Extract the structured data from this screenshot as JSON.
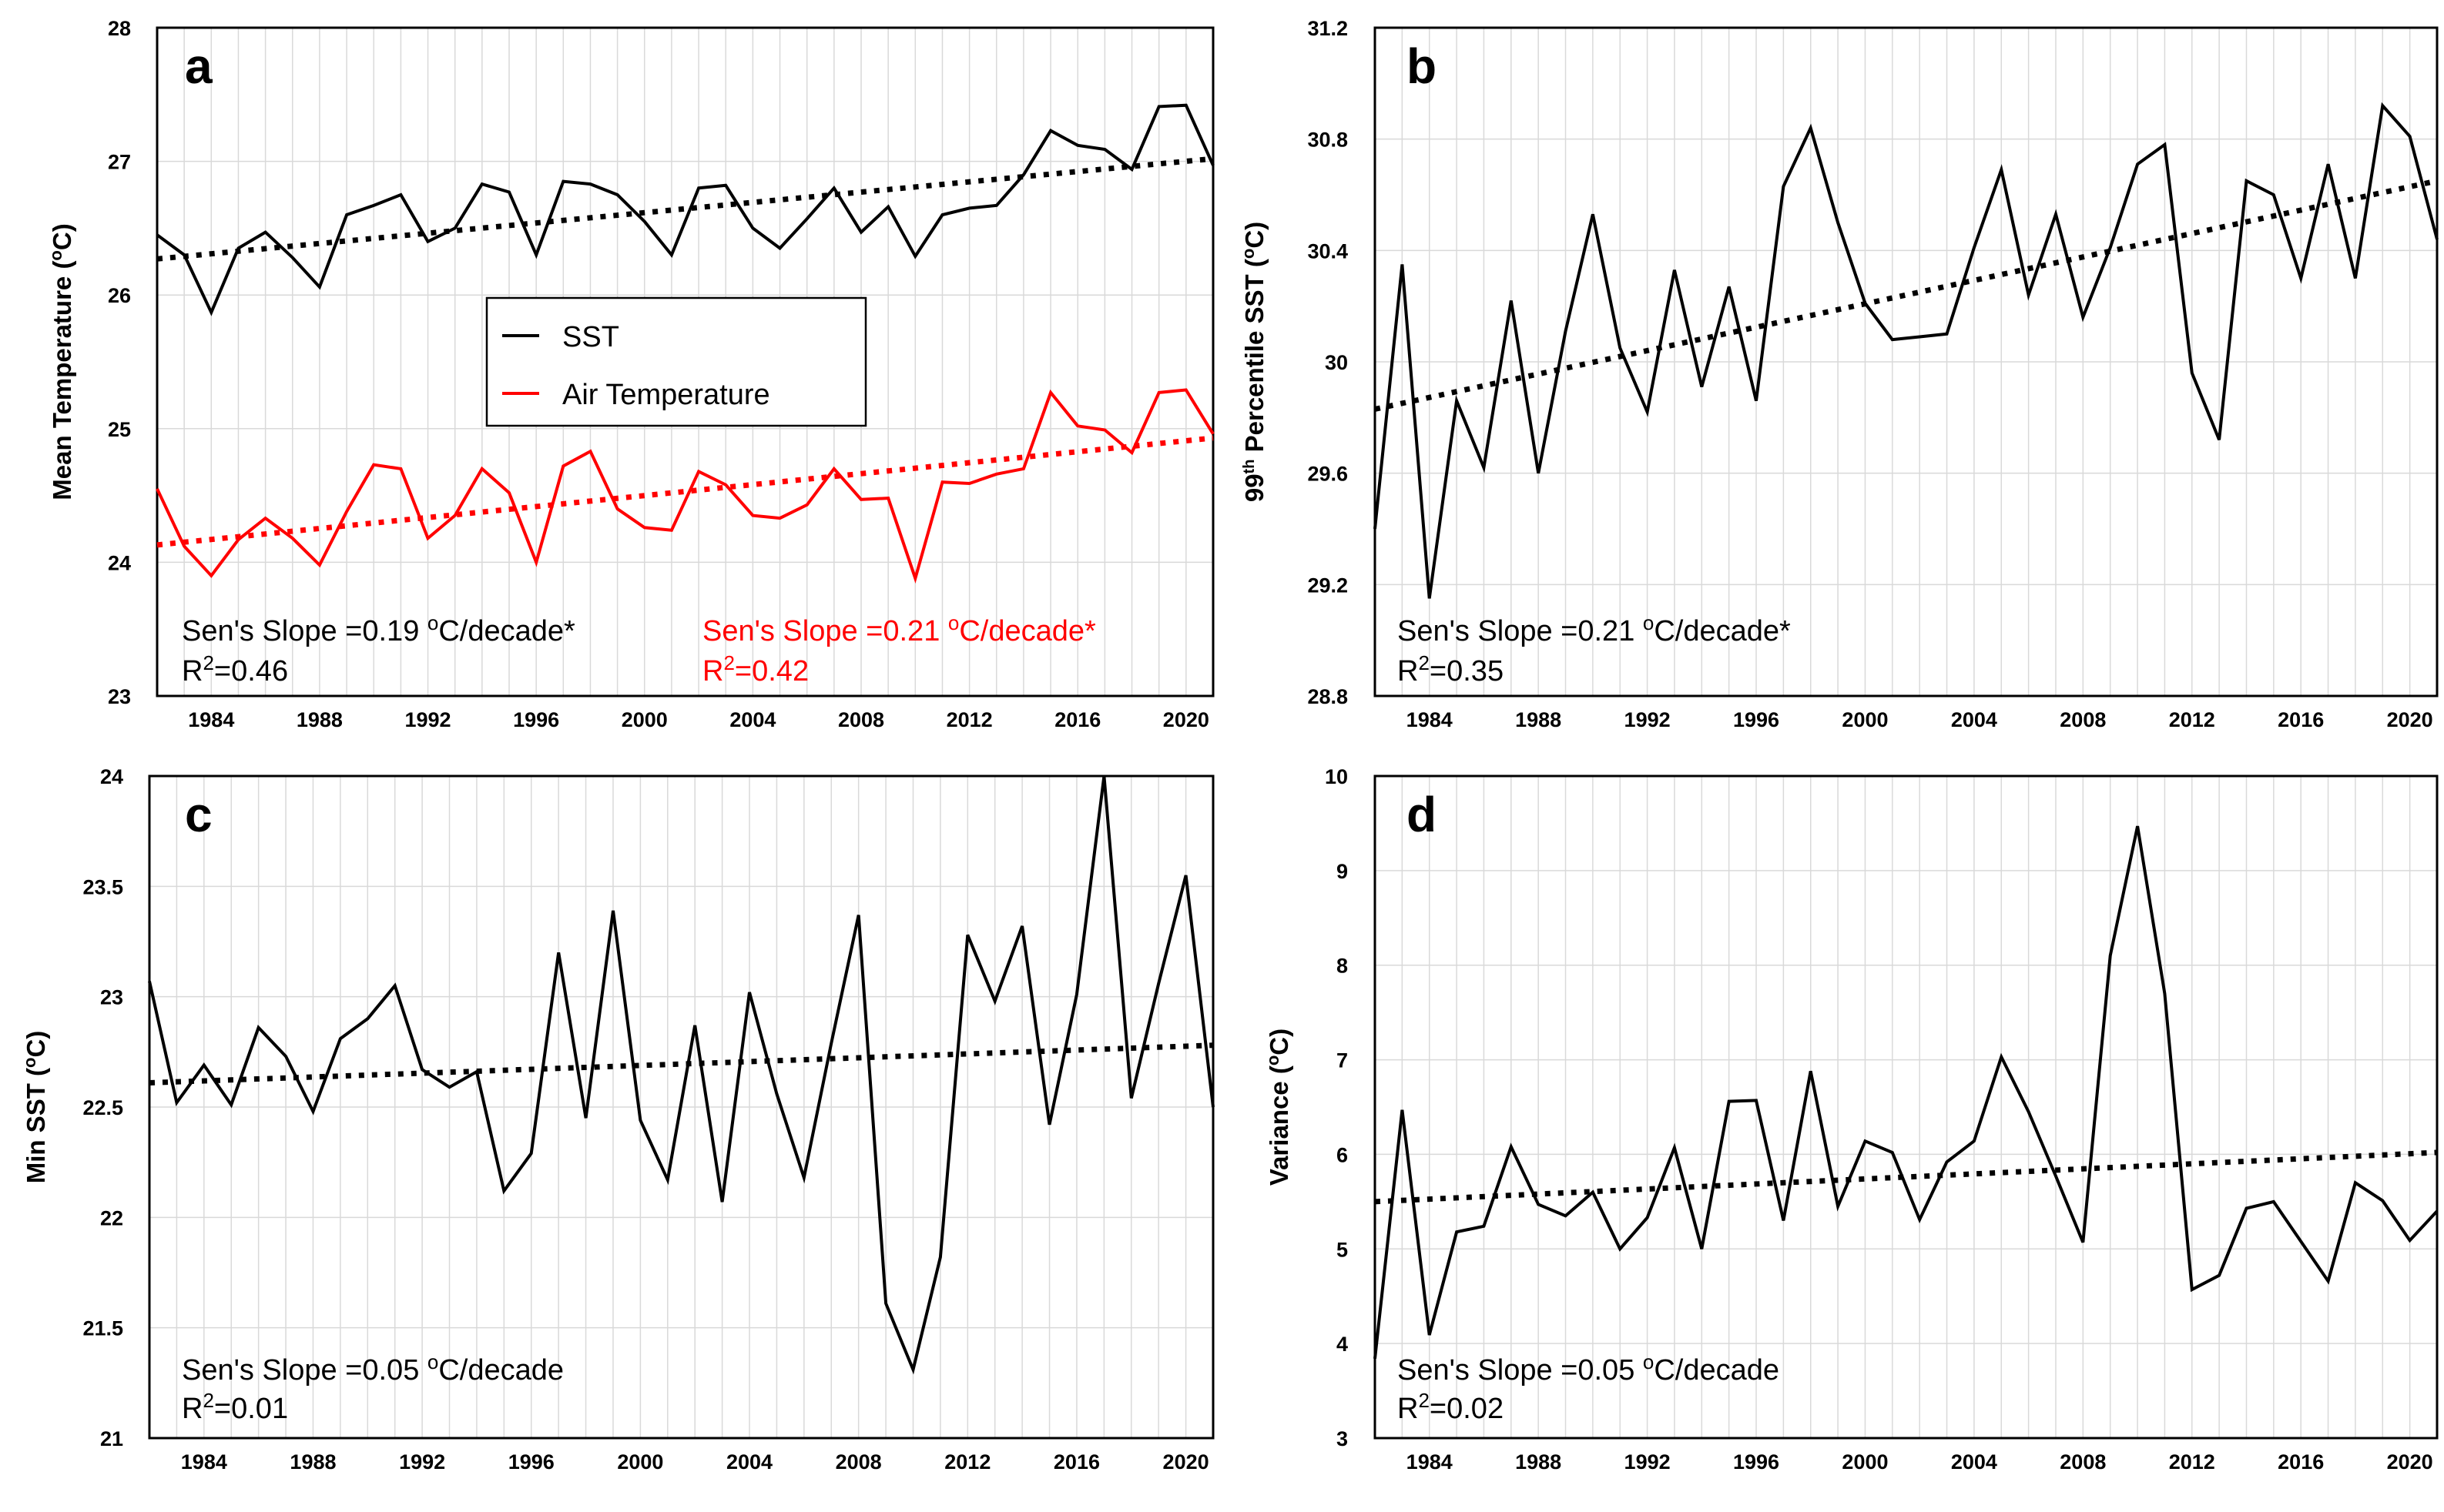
{
  "chart_data": [
    {
      "type": "line",
      "panel": "a",
      "ylabel": "Mean Temperature (oC)",
      "ylabel_main": "Mean Temperature (",
      "ylabel_sup": "o",
      "ylabel_end": "C)",
      "ylim": [
        23,
        28
      ],
      "yticks": [
        23,
        24,
        25,
        26,
        27,
        28
      ],
      "xlim": [
        1982,
        2021
      ],
      "xticks": [
        1984,
        1988,
        1992,
        1996,
        2000,
        2004,
        2008,
        2012,
        2016,
        2020
      ],
      "grid": true,
      "legend": {
        "placement": "center-left",
        "entries": [
          "SST",
          "Air Temperature"
        ]
      },
      "series": [
        {
          "name": "SST",
          "color": "#000000",
          "x": [
            1982,
            1983,
            1984,
            1985,
            1986,
            1987,
            1988,
            1989,
            1990,
            1991,
            1992,
            1993,
            1994,
            1995,
            1996,
            1997,
            1998,
            1999,
            2000,
            2001,
            2002,
            2003,
            2004,
            2005,
            2006,
            2007,
            2008,
            2009,
            2010,
            2011,
            2012,
            2013,
            2014,
            2015,
            2016,
            2017,
            2018,
            2019,
            2020,
            2021
          ],
          "values": [
            26.45,
            26.3,
            25.87,
            26.35,
            26.47,
            26.28,
            26.06,
            26.6,
            26.67,
            26.75,
            26.4,
            26.5,
            26.83,
            26.77,
            26.3,
            26.85,
            26.83,
            26.75,
            26.55,
            26.3,
            26.8,
            26.82,
            26.5,
            26.35,
            26.57,
            26.8,
            26.47,
            26.66,
            26.29,
            26.6,
            26.65,
            26.67,
            26.9,
            27.23,
            27.12,
            27.09,
            26.94,
            27.41,
            27.42,
            26.97
          ]
        },
        {
          "name": "Air Temperature",
          "color": "#ff0000",
          "x": [
            1982,
            1983,
            1984,
            1985,
            1986,
            1987,
            1988,
            1989,
            1990,
            1991,
            1992,
            1993,
            1994,
            1995,
            1996,
            1997,
            1998,
            1999,
            2000,
            2001,
            2002,
            2003,
            2004,
            2005,
            2006,
            2007,
            2008,
            2009,
            2010,
            2011,
            2012,
            2013,
            2014,
            2015,
            2016,
            2017,
            2018,
            2019,
            2020,
            2021
          ],
          "values": [
            24.55,
            24.12,
            23.9,
            24.17,
            24.33,
            24.18,
            23.98,
            24.38,
            24.73,
            24.7,
            24.18,
            24.35,
            24.7,
            24.52,
            24,
            24.72,
            24.83,
            24.4,
            24.26,
            24.24,
            24.68,
            24.58,
            24.35,
            24.33,
            24.43,
            24.7,
            24.47,
            24.48,
            23.88,
            24.6,
            24.59,
            24.66,
            24.7,
            25.27,
            25.02,
            24.99,
            24.82,
            25.27,
            25.29,
            24.96
          ]
        }
      ],
      "trends": [
        {
          "name": "SST trend",
          "color": "#000000",
          "x": [
            1982,
            2021
          ],
          "values": [
            26.27,
            27.02
          ]
        },
        {
          "name": "Air Temperature trend",
          "color": "#ff0000",
          "x": [
            1982,
            2021
          ],
          "values": [
            24.13,
            24.93
          ]
        }
      ],
      "annotations": [
        {
          "text": "Sen's Slope =0.19 ",
          "sup": "o",
          "text_end": "C/decade*",
          "r2": "R2=0.46",
          "r2_main": "R",
          "r2_sup": "2",
          "r2_end": "=0.46",
          "color": "#000000"
        },
        {
          "text": "Sen's Slope =0.21 ",
          "sup": "o",
          "text_end": "C/decade*",
          "r2": "R2=0.42",
          "r2_main": "R",
          "r2_sup": "2",
          "r2_end": "=0.42",
          "color": "#ff0000"
        }
      ]
    },
    {
      "type": "line",
      "panel": "b",
      "ylabel": "99th Percentile SST (oC)",
      "ylabel_pre": "99",
      "ylabel_pre_sup": "th",
      "ylabel_main": " Percentile SST (",
      "ylabel_sup": "o",
      "ylabel_end": "C)",
      "ylim": [
        28.8,
        31.2
      ],
      "yticks": [
        28.8,
        29.2,
        29.6,
        30,
        30.4,
        30.8,
        31.2
      ],
      "ytick_labels": [
        "28.8",
        "29.2",
        "29.6",
        "30",
        "30.4",
        "30.8",
        "31.2"
      ],
      "xlim": [
        1982,
        2021
      ],
      "xticks": [
        1984,
        1988,
        1992,
        1996,
        2000,
        2004,
        2008,
        2012,
        2016,
        2020
      ],
      "grid": true,
      "series": [
        {
          "name": "99th Percentile SST",
          "color": "#000000",
          "x": [
            1982,
            1983,
            1984,
            1985,
            1986,
            1987,
            1988,
            1989,
            1990,
            1991,
            1992,
            1993,
            1994,
            1995,
            1996,
            1997,
            1998,
            1999,
            2000,
            2001,
            2002,
            2003,
            2004,
            2005,
            2006,
            2007,
            2008,
            2009,
            2010,
            2011,
            2012,
            2013,
            2014,
            2015,
            2016,
            2017,
            2018,
            2019,
            2020,
            2021
          ],
          "values": [
            29.4,
            30.35,
            29.15,
            29.86,
            29.62,
            30.22,
            29.6,
            30.11,
            30.53,
            30.05,
            29.82,
            30.33,
            29.91,
            30.27,
            29.86,
            30.63,
            30.84,
            30.5,
            30.21,
            30.08,
            30.09,
            30.1,
            30.41,
            30.69,
            30.24,
            30.53,
            30.16,
            30.41,
            30.71,
            30.78,
            29.96,
            29.72,
            30.65,
            30.6,
            30.3,
            30.71,
            30.3,
            30.92,
            30.81,
            30.44
          ]
        }
      ],
      "trends": [
        {
          "name": "trend",
          "color": "#000000",
          "x": [
            1982,
            2021
          ],
          "values": [
            29.83,
            30.65
          ]
        }
      ],
      "annotations": [
        {
          "text": "Sen's Slope =0.21 ",
          "sup": "o",
          "text_end": "C/decade*",
          "r2": "R2=0.35",
          "r2_main": "R",
          "r2_sup": "2",
          "r2_end": "=0.35",
          "color": "#000000"
        }
      ]
    },
    {
      "type": "line",
      "panel": "c",
      "ylabel": "Min SST (oC)",
      "ylabel_main": "Min SST (",
      "ylabel_sup": "o",
      "ylabel_end": "C)",
      "ylim": [
        21,
        24
      ],
      "yticks": [
        21,
        21.5,
        22,
        22.5,
        23,
        23.5,
        24
      ],
      "ytick_labels": [
        "21",
        "21.5",
        "22",
        "22.5",
        "23",
        "23.5",
        "24"
      ],
      "xlim": [
        1982,
        2021
      ],
      "xticks": [
        1984,
        1988,
        1992,
        1996,
        2000,
        2004,
        2008,
        2012,
        2016,
        2020
      ],
      "grid": true,
      "series": [
        {
          "name": "Min SST",
          "color": "#000000",
          "x": [
            1982,
            1983,
            1984,
            1985,
            1986,
            1987,
            1988,
            1989,
            1990,
            1991,
            1992,
            1993,
            1994,
            1995,
            1996,
            1997,
            1998,
            1999,
            2000,
            2001,
            2002,
            2003,
            2004,
            2005,
            2006,
            2007,
            2008,
            2009,
            2010,
            2011,
            2012,
            2013,
            2014,
            2015,
            2016,
            2017,
            2018,
            2019,
            2020,
            2021
          ],
          "values": [
            23.07,
            22.52,
            22.69,
            22.51,
            22.86,
            22.73,
            22.48,
            22.81,
            22.9,
            23.05,
            22.67,
            22.59,
            22.66,
            22.12,
            22.29,
            23.2,
            22.45,
            23.39,
            22.44,
            22.17,
            22.87,
            22.07,
            23.02,
            22.56,
            22.18,
            22.79,
            23.37,
            21.61,
            21.31,
            21.82,
            23.28,
            22.98,
            23.32,
            22.42,
            23.01,
            24,
            22.54,
            23.06,
            23.55,
            22.5
          ]
        }
      ],
      "trends": [
        {
          "name": "trend",
          "color": "#000000",
          "x": [
            1982,
            2021
          ],
          "values": [
            22.61,
            22.78
          ]
        }
      ],
      "annotations": [
        {
          "text": "Sen's Slope =0.05 ",
          "sup": "o",
          "text_end": "C/decade",
          "r2": "R2=0.01",
          "r2_main": "R",
          "r2_sup": "2",
          "r2_end": "=0.01",
          "color": "#000000"
        }
      ]
    },
    {
      "type": "line",
      "panel": "d",
      "ylabel": "Variance (oC)",
      "ylabel_main": "Variance (",
      "ylabel_sup": "o",
      "ylabel_end": "C)",
      "ylim": [
        3,
        10
      ],
      "yticks": [
        3,
        4,
        5,
        6,
        7,
        8,
        9,
        10
      ],
      "ytick_labels": [
        "3",
        "4",
        "5",
        "6",
        "7",
        "8",
        "9",
        "10"
      ],
      "xlim": [
        1982,
        2021
      ],
      "xticks": [
        1984,
        1988,
        1992,
        1996,
        2000,
        2004,
        2008,
        2012,
        2016,
        2020
      ],
      "grid": true,
      "series": [
        {
          "name": "Variance",
          "color": "#000000",
          "x": [
            1982,
            1983,
            1984,
            1985,
            1986,
            1987,
            1988,
            1989,
            1990,
            1991,
            1992,
            1993,
            1994,
            1995,
            1996,
            1997,
            1998,
            1999,
            2000,
            2001,
            2002,
            2003,
            2004,
            2005,
            2006,
            2007,
            2008,
            2009,
            2010,
            2011,
            2012,
            2013,
            2014,
            2015,
            2016,
            2017,
            2018,
            2019,
            2020,
            2021
          ],
          "values": [
            3.84,
            6.47,
            4.09,
            5.18,
            5.24,
            6.08,
            5.47,
            5.35,
            5.6,
            5,
            5.33,
            6.07,
            5,
            6.56,
            6.57,
            5.3,
            6.88,
            5.45,
            6.14,
            6.02,
            5.31,
            5.92,
            6.14,
            7.03,
            6.45,
            5.77,
            5.07,
            8.1,
            9.47,
            7.7,
            4.57,
            4.72,
            5.43,
            5.5,
            5.08,
            4.66,
            5.7,
            5.51,
            5.09,
            5.4
          ]
        }
      ],
      "trends": [
        {
          "name": "trend",
          "color": "#000000",
          "x": [
            1982,
            2021
          ],
          "values": [
            5.5,
            6.02
          ]
        }
      ],
      "annotations": [
        {
          "text": "Sen's Slope =0.05 ",
          "sup": "o",
          "text_end": "C/decade",
          "r2": "R2=0.02",
          "r2_main": "R",
          "r2_sup": "2",
          "r2_end": "=0.02",
          "color": "#000000"
        }
      ]
    }
  ]
}
